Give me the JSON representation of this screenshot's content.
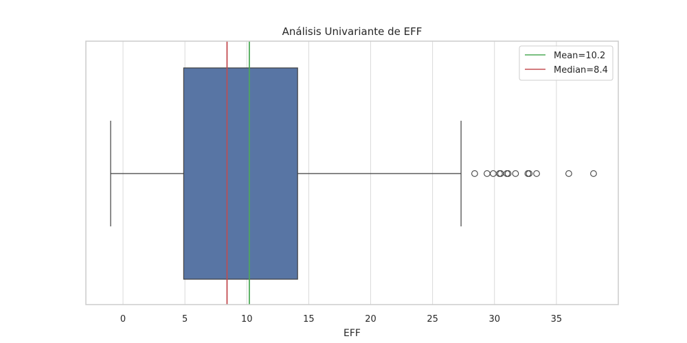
{
  "chart_data": {
    "type": "boxplot",
    "title": "Análisis Univariante de EFF",
    "xlabel": "EFF",
    "ylabel": "",
    "xlim": [
      -3,
      40
    ],
    "xticks": [
      0,
      5,
      10,
      15,
      20,
      25,
      30,
      35
    ],
    "grid": "vertical",
    "box": {
      "whisker_low": -1,
      "q1": 4.9,
      "median": 8.4,
      "q3": 14.1,
      "whisker_high": 27.3,
      "color": "#5875a4",
      "edge_color": "#3f3f3f"
    },
    "outliers": [
      28.4,
      29.4,
      29.9,
      30.4,
      30.5,
      31.0,
      31.1,
      31.7,
      32.7,
      32.8,
      33.4,
      36.0,
      38.0
    ],
    "reference_lines": [
      {
        "name": "Mean",
        "value": 10.2,
        "color": "#4daa57",
        "label": "Mean=10.2"
      },
      {
        "name": "Median",
        "value": 8.4,
        "color": "#c44e52",
        "label": "Median=8.4"
      }
    ],
    "legend_position": "top-right"
  }
}
